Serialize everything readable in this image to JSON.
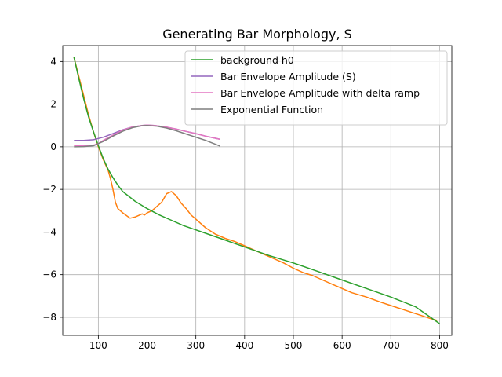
{
  "chart_data": {
    "type": "line",
    "title": "Generating Bar Morphology, S",
    "xlabel": "",
    "ylabel": "",
    "xlim": [
      27,
      825
    ],
    "ylim": [
      -8.85,
      4.75
    ],
    "xticks": [
      100,
      200,
      300,
      400,
      500,
      600,
      700,
      800
    ],
    "yticks": [
      -8,
      -6,
      -4,
      -2,
      0,
      2,
      4
    ],
    "grid": true,
    "legend_position": "top-right",
    "series": [
      {
        "name": "",
        "color": "#ff7f0e",
        "in_legend": false,
        "points": [
          [
            50,
            4.2
          ],
          [
            60,
            3.3
          ],
          [
            70,
            2.4
          ],
          [
            80,
            1.5
          ],
          [
            90,
            0.7
          ],
          [
            100,
            0.0
          ],
          [
            110,
            -0.6
          ],
          [
            120,
            -1.1
          ],
          [
            125,
            -1.5
          ],
          [
            130,
            -2.0
          ],
          [
            135,
            -2.6
          ],
          [
            140,
            -2.9
          ],
          [
            150,
            -3.1
          ],
          [
            165,
            -3.35
          ],
          [
            175,
            -3.3
          ],
          [
            185,
            -3.2
          ],
          [
            190,
            -3.15
          ],
          [
            195,
            -3.2
          ],
          [
            200,
            -3.1
          ],
          [
            210,
            -3.0
          ],
          [
            220,
            -2.8
          ],
          [
            230,
            -2.6
          ],
          [
            240,
            -2.2
          ],
          [
            250,
            -2.1
          ],
          [
            260,
            -2.3
          ],
          [
            270,
            -2.65
          ],
          [
            280,
            -2.9
          ],
          [
            290,
            -3.2
          ],
          [
            300,
            -3.4
          ],
          [
            320,
            -3.8
          ],
          [
            340,
            -4.1
          ],
          [
            360,
            -4.3
          ],
          [
            380,
            -4.45
          ],
          [
            400,
            -4.65
          ],
          [
            420,
            -4.85
          ],
          [
            440,
            -5.05
          ],
          [
            460,
            -5.25
          ],
          [
            480,
            -5.45
          ],
          [
            500,
            -5.7
          ],
          [
            520,
            -5.9
          ],
          [
            540,
            -6.05
          ],
          [
            560,
            -6.25
          ],
          [
            580,
            -6.45
          ],
          [
            600,
            -6.65
          ],
          [
            620,
            -6.85
          ],
          [
            650,
            -7.05
          ],
          [
            680,
            -7.3
          ],
          [
            700,
            -7.45
          ],
          [
            720,
            -7.6
          ],
          [
            740,
            -7.75
          ],
          [
            760,
            -7.9
          ],
          [
            780,
            -8.05
          ],
          [
            795,
            -8.15
          ]
        ]
      },
      {
        "name": "background h0",
        "color": "#2ca02c",
        "in_legend": true,
        "points": [
          [
            50,
            4.2
          ],
          [
            60,
            3.2
          ],
          [
            70,
            2.25
          ],
          [
            80,
            1.4
          ],
          [
            90,
            0.7
          ],
          [
            100,
            0.05
          ],
          [
            110,
            -0.55
          ],
          [
            120,
            -1.05
          ],
          [
            130,
            -1.45
          ],
          [
            140,
            -1.8
          ],
          [
            150,
            -2.1
          ],
          [
            175,
            -2.55
          ],
          [
            200,
            -2.9
          ],
          [
            225,
            -3.2
          ],
          [
            250,
            -3.45
          ],
          [
            275,
            -3.7
          ],
          [
            300,
            -3.9
          ],
          [
            350,
            -4.3
          ],
          [
            400,
            -4.7
          ],
          [
            450,
            -5.1
          ],
          [
            500,
            -5.45
          ],
          [
            550,
            -5.85
          ],
          [
            600,
            -6.25
          ],
          [
            650,
            -6.65
          ],
          [
            700,
            -7.05
          ],
          [
            750,
            -7.5
          ],
          [
            800,
            -8.3
          ]
        ]
      },
      {
        "name": "Bar Envelope Amplitude (S)",
        "color": "#9467bd",
        "in_legend": true,
        "points": [
          [
            50,
            0.3
          ],
          [
            70,
            0.3
          ],
          [
            90,
            0.33
          ],
          [
            110,
            0.45
          ],
          [
            130,
            0.62
          ],
          [
            150,
            0.8
          ],
          [
            170,
            0.93
          ],
          [
            190,
            1.0
          ],
          [
            200,
            1.02
          ],
          [
            215,
            1.0
          ],
          [
            240,
            0.92
          ],
          [
            260,
            0.83
          ],
          [
            280,
            0.72
          ],
          [
            300,
            0.62
          ],
          [
            320,
            0.5
          ],
          [
            340,
            0.4
          ],
          [
            350,
            0.35
          ]
        ]
      },
      {
        "name": "Bar Envelope Amplitude with delta ramp",
        "color": "#e377c2",
        "in_legend": true,
        "points": [
          [
            50,
            0.05
          ],
          [
            70,
            0.06
          ],
          [
            90,
            0.08
          ],
          [
            100,
            0.15
          ],
          [
            110,
            0.3
          ],
          [
            130,
            0.55
          ],
          [
            150,
            0.78
          ],
          [
            170,
            0.93
          ],
          [
            190,
            1.0
          ],
          [
            200,
            1.02
          ],
          [
            215,
            1.0
          ],
          [
            240,
            0.92
          ],
          [
            260,
            0.83
          ],
          [
            280,
            0.72
          ],
          [
            300,
            0.62
          ],
          [
            320,
            0.5
          ],
          [
            340,
            0.4
          ],
          [
            350,
            0.35
          ]
        ]
      },
      {
        "name": "Exponential Function",
        "color": "#7f7f7f",
        "in_legend": true,
        "points": [
          [
            50,
            0.0
          ],
          [
            70,
            0.01
          ],
          [
            90,
            0.05
          ],
          [
            110,
            0.25
          ],
          [
            130,
            0.5
          ],
          [
            150,
            0.73
          ],
          [
            170,
            0.9
          ],
          [
            190,
            0.99
          ],
          [
            200,
            1.0
          ],
          [
            220,
            0.97
          ],
          [
            240,
            0.88
          ],
          [
            260,
            0.75
          ],
          [
            280,
            0.6
          ],
          [
            300,
            0.45
          ],
          [
            320,
            0.3
          ],
          [
            340,
            0.12
          ],
          [
            350,
            0.03
          ]
        ]
      }
    ]
  }
}
